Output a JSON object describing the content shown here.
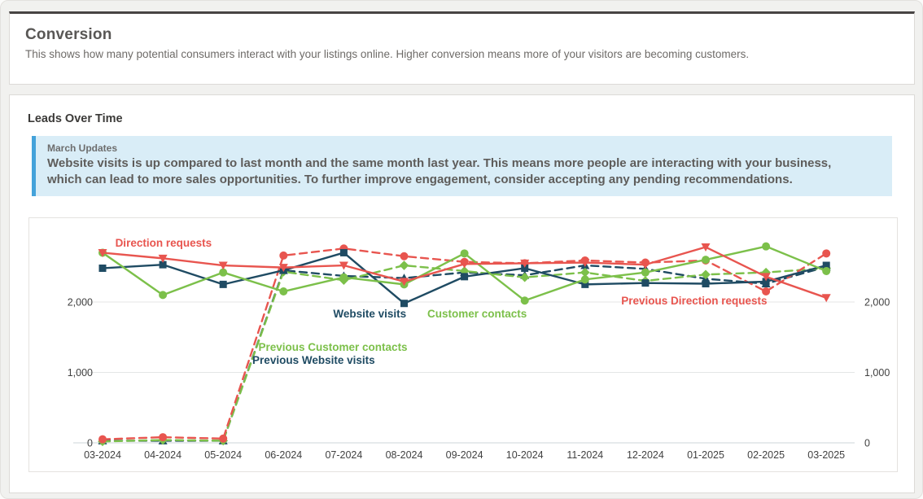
{
  "conversion": {
    "title": "Conversion",
    "description": "This shows how many potential consumers interact with your listings online. Higher conversion means more of your visitors are becoming customers."
  },
  "leads": {
    "title": "Leads Over Time",
    "update": {
      "title": "March Updates",
      "body": "Website visits is up compared to last month and the same month last year. This means more people are interacting with your business, which can lead to more sales opportunities. To further improve engagement, consider accepting any pending recommendations."
    }
  },
  "colors": {
    "red": "#e8554f",
    "navy": "#1f4b63",
    "green": "#7cc04a",
    "callout_accent": "#44a2da",
    "callout_bg": "#d9edf7"
  },
  "chart_data": {
    "type": "line",
    "title": "Leads Over Time",
    "xlabel": "",
    "ylabel": "",
    "ylim": [
      0,
      2900
    ],
    "yticks": [
      0,
      1000,
      2000
    ],
    "ytick_labels": [
      "0",
      "1,000",
      "2,000"
    ],
    "grid": "horizontal",
    "legend_position": "in-chart-annotations",
    "categories": [
      "03-2024",
      "04-2024",
      "05-2024",
      "06-2024",
      "07-2024",
      "08-2024",
      "09-2024",
      "10-2024",
      "11-2024",
      "12-2024",
      "01-2025",
      "02-2025",
      "03-2025"
    ],
    "series": [
      {
        "name": "Previous Website visits",
        "color": "#1f4b63",
        "style": "dashed",
        "marker": "triangle-up",
        "values": [
          30,
          30,
          30,
          2450,
          2370,
          2340,
          2420,
          2380,
          2520,
          2470,
          2330,
          2260,
          2500
        ]
      },
      {
        "name": "Previous Customer contacts",
        "color": "#7cc04a",
        "style": "dashed",
        "marker": "diamond",
        "values": [
          20,
          40,
          30,
          2430,
          2310,
          2520,
          2440,
          2350,
          2420,
          2300,
          2390,
          2420,
          2480
        ]
      },
      {
        "name": "Previous Direction requests",
        "color": "#e8554f",
        "style": "dashed",
        "marker": "circle",
        "values": [
          50,
          80,
          60,
          2660,
          2760,
          2650,
          2570,
          2550,
          2590,
          2560,
          2590,
          2150,
          2690
        ]
      },
      {
        "name": "Website visits",
        "color": "#1f4b63",
        "style": "solid",
        "marker": "square",
        "values": [
          2480,
          2530,
          2250,
          2450,
          2700,
          1980,
          2360,
          2480,
          2250,
          2270,
          2260,
          2290,
          2520
        ]
      },
      {
        "name": "Customer contacts",
        "color": "#7cc04a",
        "style": "solid",
        "marker": "circle",
        "values": [
          2700,
          2100,
          2420,
          2150,
          2350,
          2250,
          2690,
          2020,
          2320,
          2420,
          2600,
          2790,
          2440
        ]
      },
      {
        "name": "Direction requests",
        "color": "#e8554f",
        "style": "solid",
        "marker": "triangle-down",
        "values": [
          2700,
          2620,
          2520,
          2490,
          2520,
          2290,
          2540,
          2550,
          2560,
          2530,
          2780,
          2360,
          2060
        ]
      }
    ],
    "annotations": [
      {
        "series": "Direction requests",
        "x": 1.01,
        "y": 2832
      },
      {
        "series": "Website visits",
        "x": 4.43,
        "y": 1827
      },
      {
        "series": "Customer contacts",
        "x": 6.21,
        "y": 1827
      },
      {
        "series": "Previous Customer contacts",
        "x": 3.82,
        "y": 1353
      },
      {
        "series": "Previous Website visits",
        "x": 3.5,
        "y": 1168
      },
      {
        "series": "Previous Direction requests",
        "x": 9.81,
        "y": 2012
      }
    ]
  }
}
